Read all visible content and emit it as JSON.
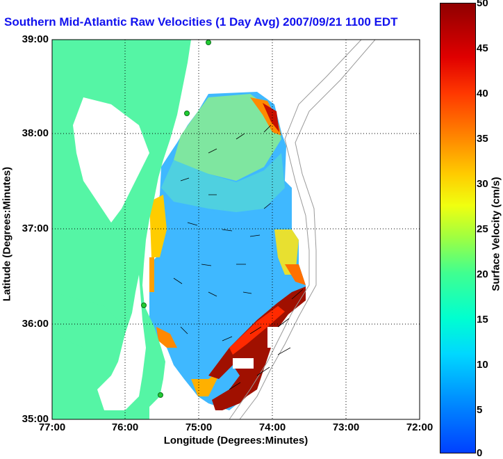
{
  "title": "Southern Mid-Atlantic Raw Velocities (1 Day Avg) 2007/09/21 1100 EDT",
  "axes": {
    "ylabel": "Latitude (Degrees:Minutes)",
    "xlabel": "Longitude (Degrees:Minutes)",
    "y_ticks": [
      "39:00",
      "38:00",
      "37:00",
      "36:00",
      "35:00"
    ],
    "x_ticks": [
      "77:00",
      "76:00",
      "75:00",
      "74:00",
      "73:00",
      "72:00"
    ]
  },
  "colorbar": {
    "label": "Surface Velocity (cm/s)",
    "ticks": [
      "50",
      "45",
      "40",
      "35",
      "30",
      "25",
      "20",
      "15",
      "10",
      "5",
      "0"
    ],
    "range": [
      0,
      50
    ],
    "colors": [
      "#0040ff",
      "#00d8ff",
      "#40ff90",
      "#f0ff10",
      "#ff8800",
      "#e00000",
      "#900000"
    ]
  },
  "map": {
    "extent_lon": [
      -77.0,
      -72.0
    ],
    "extent_lat": [
      35.0,
      39.0
    ],
    "land_color": "#55f5a5",
    "grid": "dotted",
    "stations": 5
  }
}
